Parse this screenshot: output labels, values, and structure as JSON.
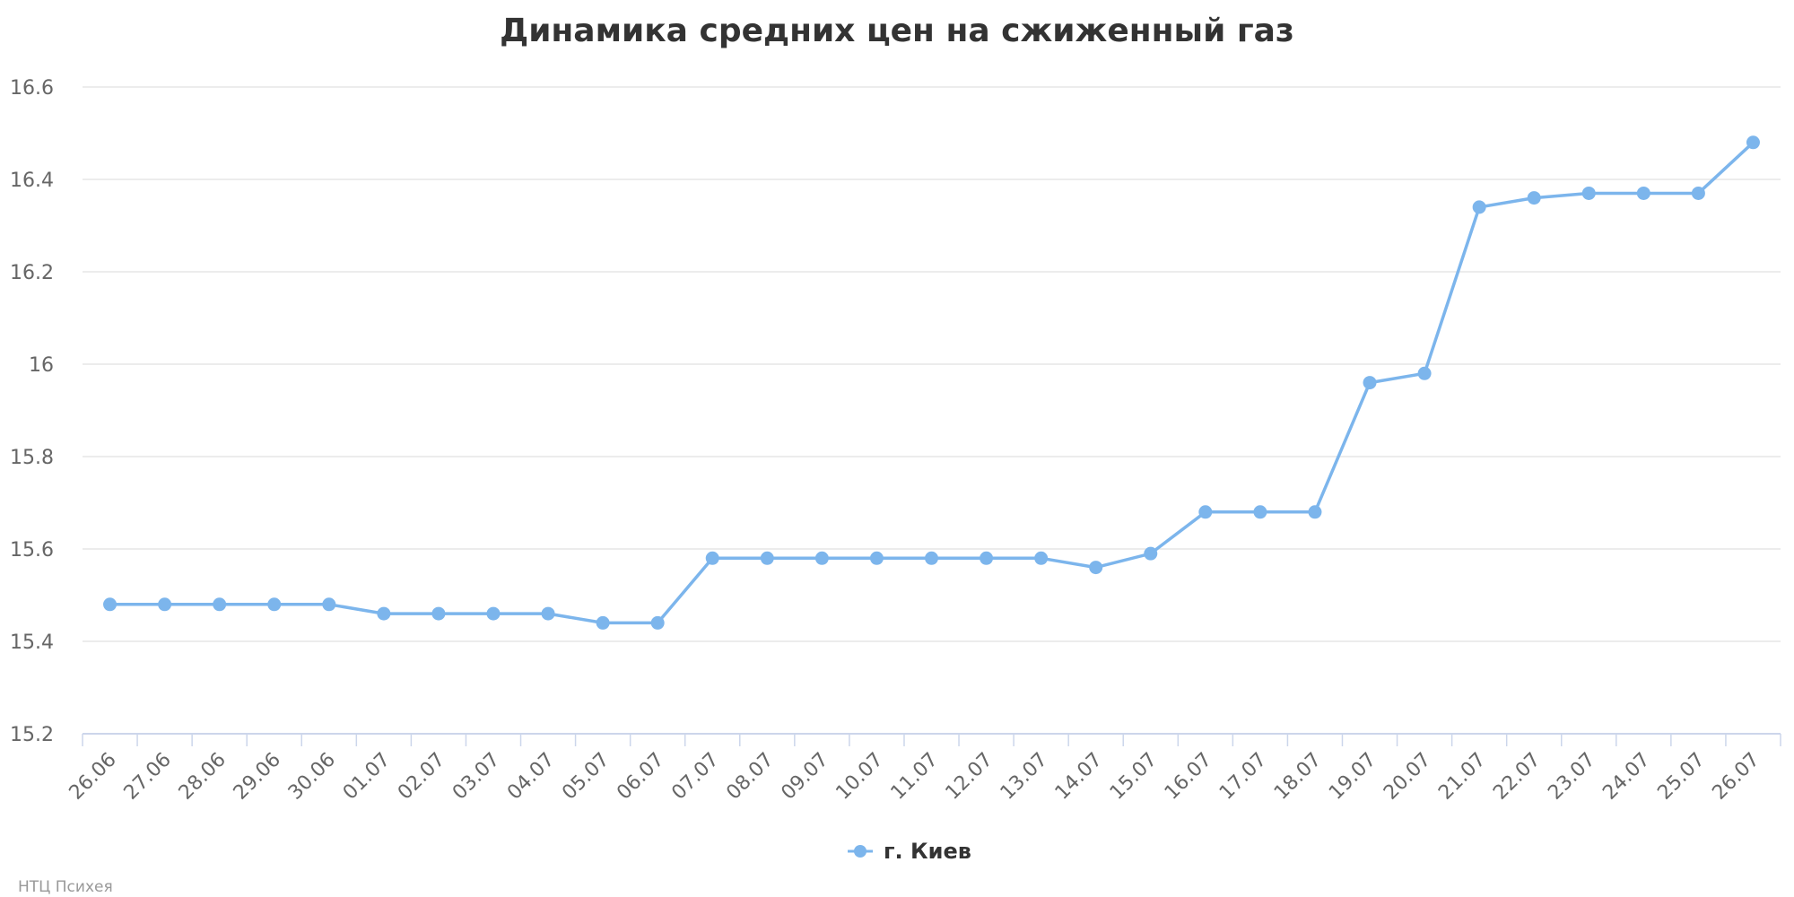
{
  "chart_data": {
    "type": "line",
    "title": "Динамика средних цен на сжиженный газ",
    "xlabel": "",
    "ylabel": "",
    "categories": [
      "26.06",
      "27.06",
      "28.06",
      "29.06",
      "30.06",
      "01.07",
      "02.07",
      "03.07",
      "04.07",
      "05.07",
      "06.07",
      "07.07",
      "08.07",
      "09.07",
      "10.07",
      "11.07",
      "12.07",
      "13.07",
      "14.07",
      "15.07",
      "16.07",
      "17.07",
      "18.07",
      "19.07",
      "20.07",
      "21.07",
      "22.07",
      "23.07",
      "24.07",
      "25.07",
      "26.07"
    ],
    "series": [
      {
        "name": "г. Киев",
        "color": "#7cb5ec",
        "values": [
          15.48,
          15.48,
          15.48,
          15.48,
          15.48,
          15.46,
          15.46,
          15.46,
          15.46,
          15.44,
          15.44,
          15.58,
          15.58,
          15.58,
          15.58,
          15.58,
          15.58,
          15.58,
          15.56,
          15.59,
          15.68,
          15.68,
          15.68,
          15.96,
          15.98,
          16.34,
          16.36,
          16.37,
          16.37,
          16.37,
          16.48
        ]
      }
    ],
    "ylim": [
      15.2,
      16.6
    ],
    "yticks": [
      "15.2",
      "15.4",
      "15.6",
      "15.8",
      "16",
      "16.2",
      "16.4",
      "16.6"
    ],
    "grid": true,
    "legend_position": "bottom-center"
  },
  "credit": "НТЦ Психея"
}
